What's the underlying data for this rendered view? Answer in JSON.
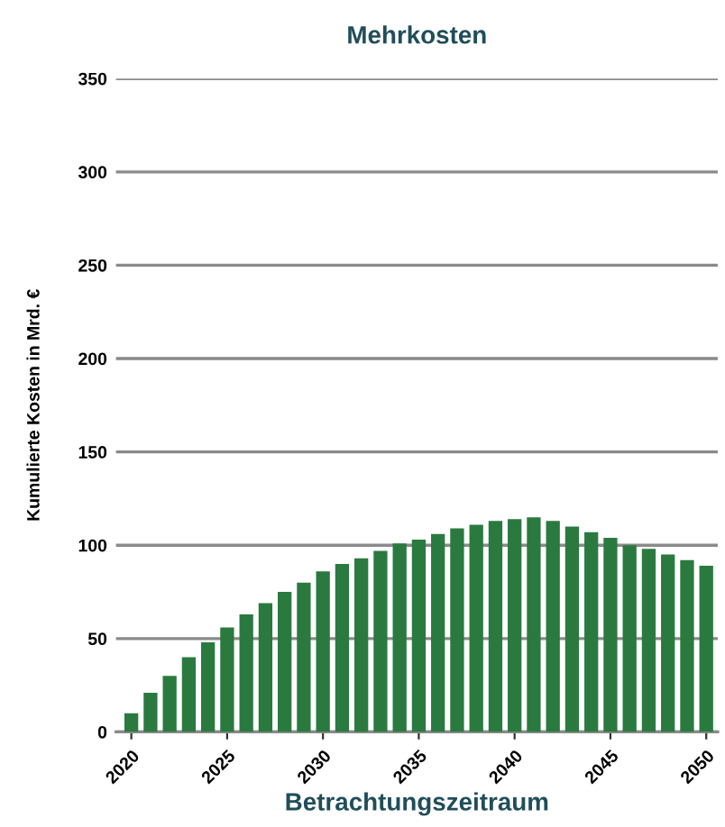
{
  "chart_data": {
    "type": "bar",
    "title": "Mehrkosten",
    "xlabel": "Betrachtungszeitraum",
    "ylabel": "Kumulierte Kosten in Mrd. €",
    "categories": [
      "2020",
      null,
      null,
      null,
      null,
      "2025",
      null,
      null,
      null,
      null,
      "2030",
      null,
      null,
      null,
      null,
      "2035",
      null,
      null,
      null,
      null,
      "2040",
      null,
      null,
      null,
      null,
      "2045",
      null,
      null,
      null,
      null,
      "2050"
    ],
    "values": [
      10,
      21,
      30,
      40,
      48,
      56,
      63,
      69,
      75,
      80,
      86,
      90,
      93,
      97,
      101,
      103,
      106,
      109,
      111,
      113,
      114,
      115,
      113,
      110,
      107,
      104,
      100,
      98,
      95,
      92,
      89
    ],
    "color": "#2a7a3f",
    "ylim": [
      0,
      350
    ],
    "yticks": [
      0,
      50,
      100,
      150,
      200,
      250,
      300,
      350
    ],
    "grid": "y"
  }
}
